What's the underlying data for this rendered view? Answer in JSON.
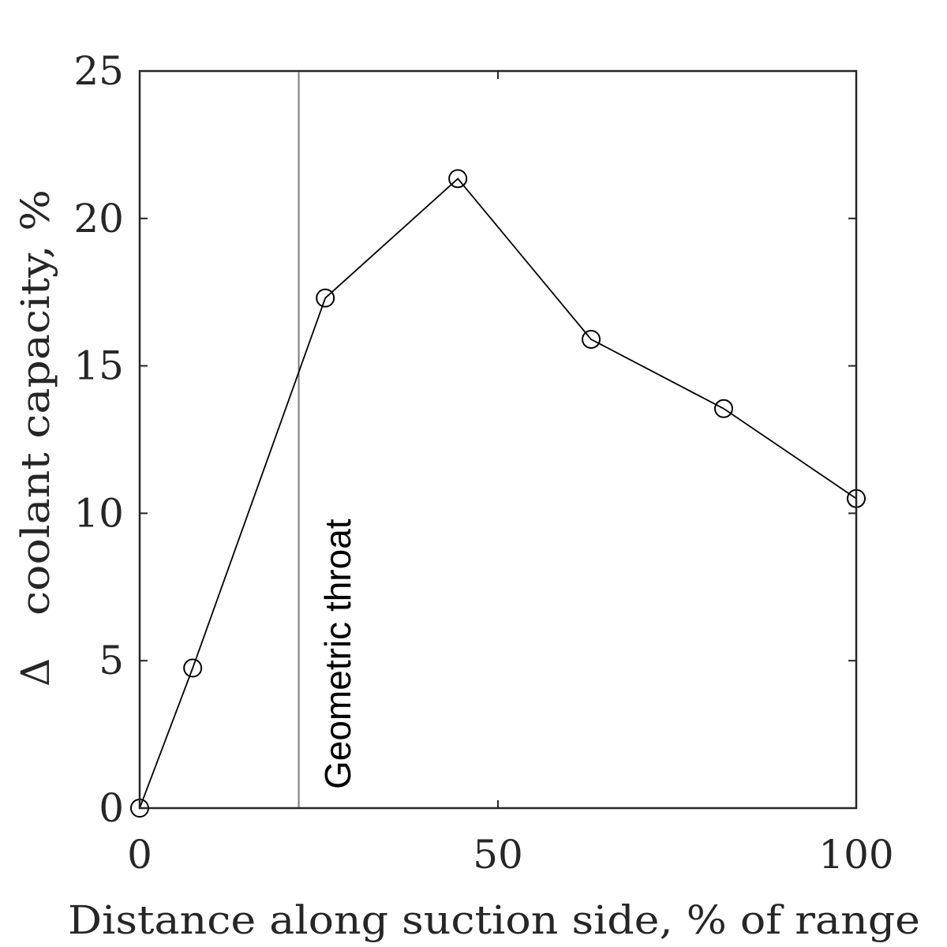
{
  "chart_data": {
    "type": "line",
    "title": "",
    "xlabel": "Distance along suction side, % of range",
    "ylabel": "coolant capacity, %",
    "ylabel_symbol": "Δ",
    "xlim": [
      0,
      100
    ],
    "ylim": [
      0,
      25
    ],
    "xticks": [
      0,
      50,
      100
    ],
    "yticks": [
      0,
      5,
      10,
      15,
      20,
      25
    ],
    "grid": false,
    "series": [
      {
        "x": [
          0,
          7.4,
          25.9,
          44.4,
          63.0,
          81.5,
          100
        ],
        "y": [
          0,
          4.75,
          17.3,
          21.35,
          15.9,
          13.55,
          10.5
        ],
        "marker": "open-circle",
        "color": "#000000"
      }
    ],
    "annotations": [
      {
        "type": "vline",
        "x": 22.2,
        "label": "Geometric throat",
        "color": "#7a7a7a"
      }
    ],
    "colors": {
      "axis": "#262626",
      "line": "#000000",
      "vline": "#7a7a7a"
    }
  }
}
